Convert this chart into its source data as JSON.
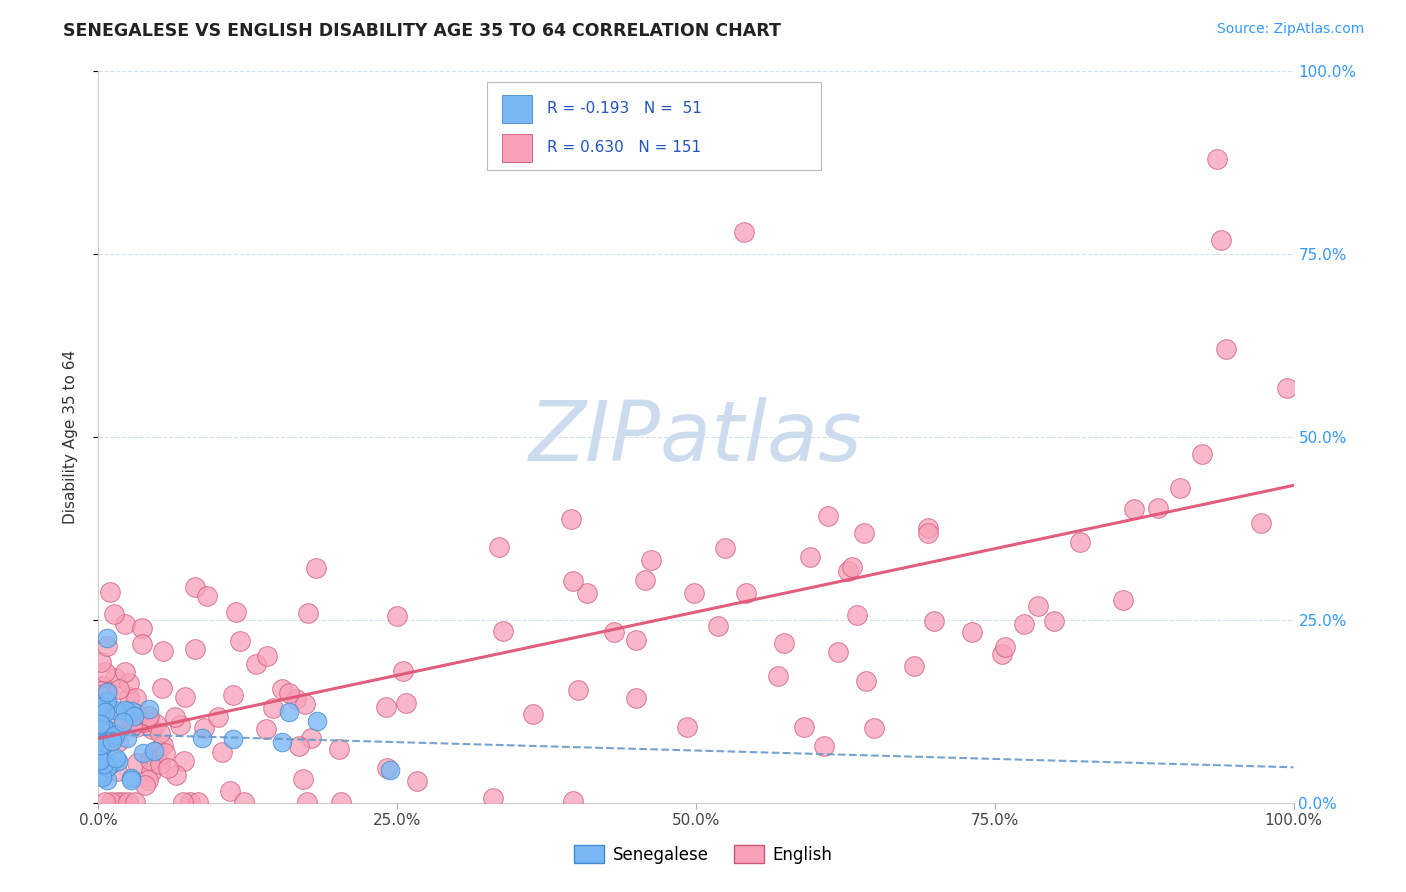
{
  "title": "SENEGALESE VS ENGLISH DISABILITY AGE 35 TO 64 CORRELATION CHART",
  "source_text": "Source: ZipAtlas.com",
  "ylabel": "Disability Age 35 to 64",
  "senegalese_color": "#7ab8f5",
  "senegalese_edge": "#4488cc",
  "english_color": "#f8a0b8",
  "english_edge": "#cc5577",
  "blue_line_color": "#6699cc",
  "pink_line_color": "#e05575",
  "watermark_text": "ZIPatlas",
  "watermark_color": "#ccdcee",
  "background_color": "#ffffff",
  "grid_color": "#ccddee",
  "senegalese_R": -0.193,
  "senegalese_N": 51,
  "english_R": 0.63,
  "english_N": 151,
  "legend_sen_text": "R = -0.193   N =  51",
  "legend_eng_text": "R = 0.630   N = 151",
  "right_tick_color": "#3399ff",
  "title_color": "#222222",
  "source_color": "#3399ff"
}
